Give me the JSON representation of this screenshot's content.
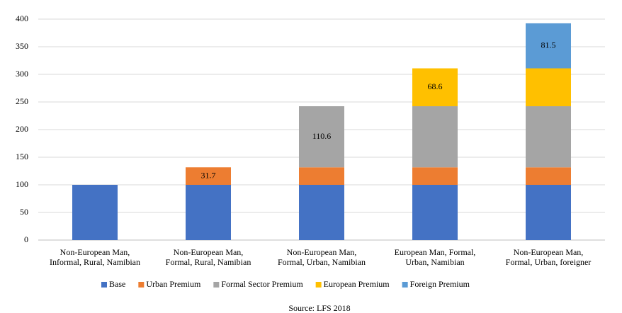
{
  "chart_data": {
    "type": "stacked_bar",
    "categories": [
      [
        "Non-European Man,",
        "Informal, Rural, Namibian"
      ],
      [
        "Non-European Man,",
        "Formal, Rural, Namibian"
      ],
      [
        "Non-European Man,",
        "Formal, Urban, Namibian"
      ],
      [
        "European Man, Formal,",
        "Urban, Namibian"
      ],
      [
        "Non-European Man,",
        "Formal, Urban, foreigner"
      ]
    ],
    "series": [
      {
        "name": "Base",
        "color": "#4472c4",
        "values": [
          100,
          100,
          100,
          100,
          100
        ]
      },
      {
        "name": "Urban Premium",
        "color": "#ed7d31",
        "values": [
          null,
          31.7,
          31.7,
          31.7,
          31.7
        ],
        "value_labels": [
          null,
          "31.7",
          null,
          null,
          null
        ]
      },
      {
        "name": "Formal Sector Premium",
        "color": "#a5a5a5",
        "values": [
          null,
          null,
          110.6,
          110.6,
          110.6
        ],
        "value_labels": [
          null,
          null,
          "110.6",
          null,
          null
        ]
      },
      {
        "name": "European Premium",
        "color": "#ffc000",
        "values": [
          null,
          null,
          null,
          68.6,
          68.6
        ],
        "value_labels": [
          null,
          null,
          null,
          "68.6",
          null
        ]
      },
      {
        "name": "Foreign Premium",
        "color": "#5b9bd5",
        "values": [
          null,
          null,
          null,
          null,
          81.5
        ],
        "value_labels": [
          null,
          null,
          null,
          null,
          "81.5"
        ]
      }
    ],
    "ylim": [
      0,
      400
    ],
    "yticks": [
      0,
      50,
      100,
      150,
      200,
      250,
      300,
      350,
      400
    ],
    "grid": true,
    "legend": "bottom",
    "source": "Source: LFS 2018"
  }
}
